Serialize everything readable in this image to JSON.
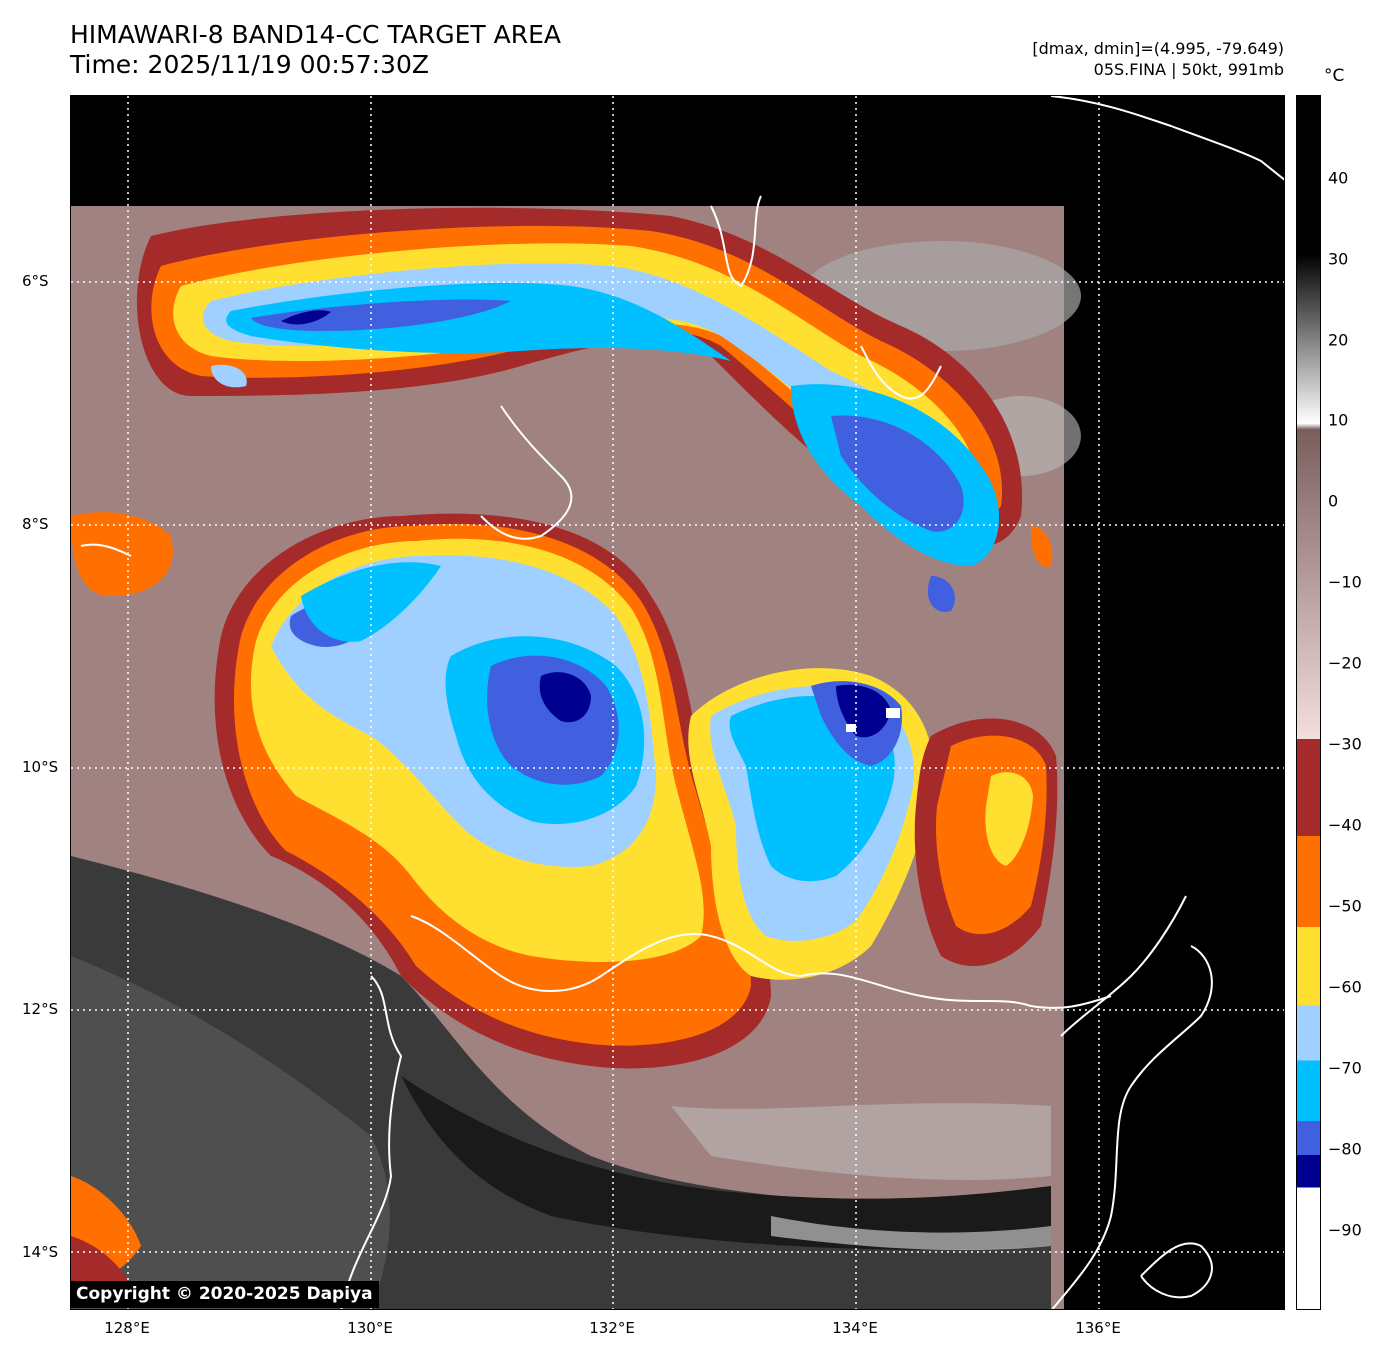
{
  "header": {
    "title_line1": "HIMAWARI-8 BAND14-CC TARGET AREA",
    "title_line2": "Time: 2025/11/19 00:57:30Z",
    "range_text": "[dmax, dmin]=(4.995, -79.649)",
    "storm_text": "05S.FINA | 50kt, 991mb"
  },
  "colorbar": {
    "unit": "°C",
    "ticks": [
      "40",
      "30",
      "20",
      "10",
      "0",
      "−10",
      "−20",
      "−30",
      "−40",
      "−50",
      "−60",
      "−70",
      "−80",
      "−90"
    ],
    "colors": {
      "warm_top": "#000000",
      "gray_mid": "#808080",
      "white_10": "#ffffff",
      "brown_0": "#7a5e5c",
      "pink_neg30": "#f3dede",
      "darkred": "#a52a2a",
      "orange": "#ff7000",
      "yellow": "#ffe030",
      "lightblue": "#a0d0ff",
      "cyan": "#00c0ff",
      "blue": "#4060e0",
      "navy": "#000090",
      "white_bottom": "#ffffff"
    }
  },
  "axes": {
    "lat_labels": [
      "6°S",
      "8°S",
      "10°S",
      "12°S",
      "14°S"
    ],
    "lon_labels": [
      "128°E",
      "130°E",
      "132°E",
      "134°E",
      "136°E"
    ]
  },
  "copyright": "Copyright © 2020-2025 Dapiya"
}
